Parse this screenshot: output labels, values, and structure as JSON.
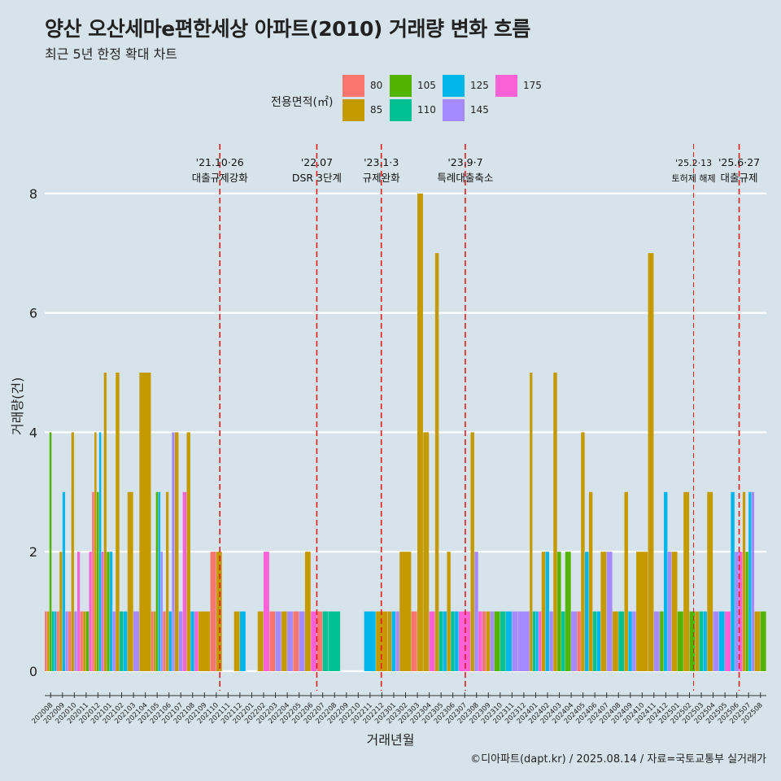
{
  "title": "양산 오산세마e편한세상 아파트(2010) 거래량 변화 흐름",
  "subtitle": "최근 5년 한정 확대 차트",
  "footer": "©디아파트(dapt.kr) / 2025.08.14 / 자료=국토교통부 실거래가",
  "colors": {
    "background": "#d6e3ea",
    "gridline": "#ffffff",
    "event_line": "#e41a1c",
    "80": "#f8766d",
    "85": "#c49a00",
    "105": "#53b400",
    "110": "#00c094",
    "125": "#00b6eb",
    "145": "#a58aff",
    "175": "#fb61d7"
  },
  "legend": {
    "title": "전용면적(㎡)",
    "items": [
      {
        "label": "80",
        "color": "#f8766d"
      },
      {
        "label": "85",
        "color": "#c49a00"
      },
      {
        "label": "105",
        "color": "#53b400"
      },
      {
        "label": "110",
        "color": "#00c094"
      },
      {
        "label": "125",
        "color": "#00b6eb"
      },
      {
        "label": "145",
        "color": "#a58aff"
      },
      {
        "label": "175",
        "color": "#fb61d7"
      }
    ]
  },
  "chart_data": {
    "type": "bar",
    "title": "양산 오산세마e편한세상 아파트(2010) 거래량 변화 흐름",
    "xlabel": "거래년월",
    "ylabel": "거래량(건)",
    "ylim": [
      0,
      8.3
    ],
    "yticks": [
      0,
      2,
      4,
      6,
      8
    ],
    "grid": true,
    "legend_position": "top",
    "categories": [
      "202008",
      "202009",
      "202010",
      "202011",
      "202012",
      "202101",
      "202102",
      "202103",
      "202104",
      "202105",
      "202106",
      "202107",
      "202108",
      "202109",
      "202110",
      "202111",
      "202112",
      "202201",
      "202202",
      "202203",
      "202204",
      "202205",
      "202206",
      "202207",
      "202208",
      "202209",
      "202210",
      "202211",
      "202212",
      "202301",
      "202302",
      "202303",
      "202304",
      "202305",
      "202306",
      "202307",
      "202308",
      "202309",
      "202310",
      "202311",
      "202312",
      "202401",
      "202402",
      "202403",
      "202404",
      "202405",
      "202406",
      "202407",
      "202408",
      "202409",
      "202410",
      "202411",
      "202412",
      "202501",
      "202502",
      "202503",
      "202504",
      "202505",
      "202506",
      "202507",
      "202508"
    ],
    "series_keys": [
      "80",
      "85",
      "105",
      "110",
      "125",
      "145",
      "175"
    ],
    "bars": {
      "202008": {
        "80": 1,
        "85": 1,
        "105": 4,
        "110": 1,
        "125": 1
      },
      "202009": {
        "80": 1,
        "85": 2,
        "125": 3,
        "145": 1
      },
      "202010": {
        "80": 1,
        "85": 4,
        "145": 1,
        "175": 2
      },
      "202011": {
        "80": 1,
        "85": 1,
        "105": 1,
        "175": 2
      },
      "202012": {
        "80": 3,
        "85": 4,
        "105": 3,
        "125": 4,
        "175": 2
      },
      "202101": {
        "85": 5,
        "105": 2,
        "125": 2,
        "145": 1
      },
      "202102": {
        "85": 5,
        "110": 1,
        "125": 1
      },
      "202103": {
        "85": 3,
        "145": 1
      },
      "202104": {
        "85": 5
      },
      "202105": {
        "80": 1,
        "85": 1,
        "105": 3,
        "125": 3,
        "145": 2
      },
      "202106": {
        "80": 1,
        "85": 3,
        "125": 1,
        "145": 4
      },
      "202107": {
        "85": 4,
        "145": 1,
        "175": 3
      },
      "202108": {
        "85": 4,
        "125": 1,
        "175": 1
      },
      "202109": {
        "85": 1
      },
      "202110": {
        "80": 2,
        "85": 2
      },
      "202111": {},
      "202112": {
        "85": 1,
        "125": 1
      },
      "202201": {},
      "202202": {
        "85": 1,
        "175": 2
      },
      "202203": {
        "80": 1,
        "145": 1
      },
      "202204": {
        "85": 1,
        "145": 1
      },
      "202205": {
        "80": 1,
        "145": 1
      },
      "202206": {
        "85": 2,
        "175": 1
      },
      "202207": {
        "80": 1,
        "110": 1
      },
      "202208": {
        "110": 1
      },
      "202209": {},
      "202210": {},
      "202211": {
        "125": 1
      },
      "202212": {
        "85": 1
      },
      "202301": {
        "85": 1,
        "125": 1,
        "145": 1
      },
      "202302": {
        "85": 2
      },
      "202303": {
        "80": 1,
        "85": 8
      },
      "202304": {
        "85": 4,
        "175": 1
      },
      "202305": {
        "85": 7,
        "110": 1,
        "125": 1
      },
      "202306": {
        "85": 2,
        "110": 1,
        "125": 1
      },
      "202307": {
        "175": 1
      },
      "202308": {
        "85": 4,
        "145": 2,
        "175": 1
      },
      "202309": {
        "80": 1,
        "85": 1,
        "145": 1
      },
      "202310": {
        "105": 1,
        "110": 1
      },
      "202311": {
        "125": 1,
        "145": 1
      },
      "202312": {
        "145": 1
      },
      "202401": {
        "85": 5,
        "110": 1,
        "125": 1,
        "175": 1
      },
      "202402": {
        "85": 2,
        "125": 2,
        "145": 1
      },
      "202403": {
        "85": 5,
        "105": 2,
        "110": 1
      },
      "202404": {
        "105": 2,
        "145": 1
      },
      "202405": {
        "80": 1,
        "85": 4,
        "125": 2
      },
      "202406": {
        "85": 3,
        "110": 1,
        "125": 1
      },
      "202407": {
        "85": 2,
        "145": 2
      },
      "202408": {
        "85": 1,
        "110": 1
      },
      "202409": {
        "85": 3,
        "125": 1,
        "145": 1
      },
      "202410": {
        "85": 2
      },
      "202411": {
        "85": 7,
        "145": 1
      },
      "202412": {
        "105": 1,
        "125": 3,
        "145": 2
      },
      "202501": {
        "85": 2,
        "105": 1
      },
      "202502": {
        "85": 3,
        "105": 1
      },
      "202503": {
        "85": 1,
        "110": 1,
        "125": 1
      },
      "202504": {
        "85": 3,
        "145": 1
      },
      "202505": {
        "125": 1,
        "175": 1
      },
      "202506": {
        "125": 3,
        "145": 2,
        "175": 2
      },
      "202507": {
        "85": 3,
        "105": 2,
        "125": 3,
        "145": 3
      },
      "202508": {
        "85": 1,
        "105": 1
      }
    },
    "events": [
      {
        "date": "2021-10-26",
        "pos": 14.8,
        "line1": "'21.10·26",
        "line2": "대출규제강화",
        "style": "dashed",
        "font": "normal"
      },
      {
        "date": "2022-07",
        "pos": 23.0,
        "line1": "'22.07",
        "line2": "DSR 3단계",
        "style": "dashed",
        "font": "normal"
      },
      {
        "date": "2023-01-03",
        "pos": 28.45,
        "line1": "'23.1·3",
        "line2": "규제완화",
        "style": "dashed",
        "font": "normal"
      },
      {
        "date": "2023-09-07",
        "pos": 35.55,
        "line1": "'23.9·7",
        "line2": "특례대출축소",
        "style": "dashed",
        "font": "normal"
      },
      {
        "date": "2025-02-13",
        "pos": 54.85,
        "line1": "'25.2·13",
        "line2": "토허제 해제",
        "style": "thin",
        "font": "small"
      },
      {
        "date": "2025-06-27",
        "pos": 58.7,
        "line1": "'25.6·27",
        "line2": "대출규제",
        "style": "dashed",
        "font": "normal"
      }
    ]
  }
}
